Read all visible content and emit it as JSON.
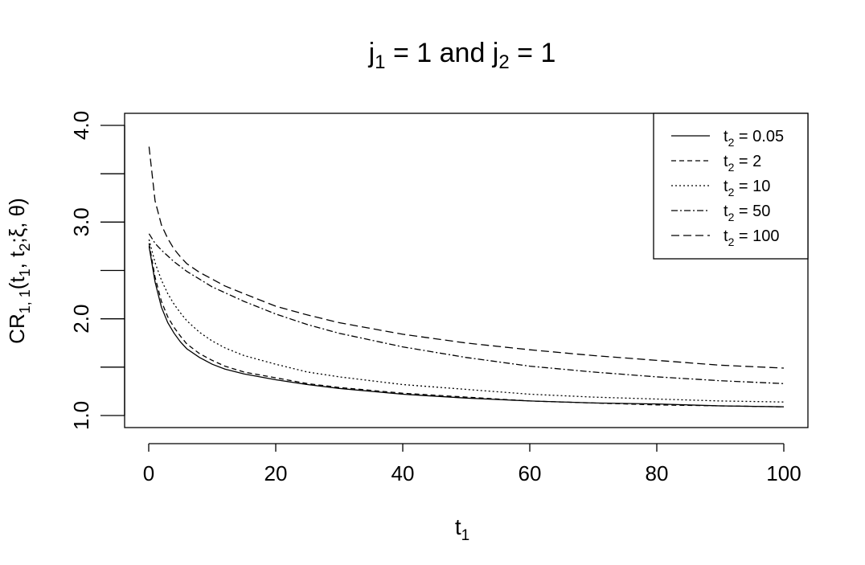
{
  "chart_data": {
    "type": "line",
    "title": {
      "j1_sym": "j",
      "j1_sub": "1",
      "mid": " = 1 and ",
      "j2_sym": "j",
      "j2_sub": "2",
      "end": " = 1"
    },
    "xlabel": {
      "sym": "t",
      "sub": "1"
    },
    "ylabel": {
      "p1": "CR",
      "s1": "1, 1",
      "p2": "(t",
      "s2": "1",
      "p3": ", t",
      "s3": "2",
      "p4": ";ξ, θ)"
    },
    "xlim": [
      0,
      100
    ],
    "ylim": [
      1.0,
      4.0
    ],
    "x_ticks": [
      0,
      20,
      40,
      60,
      80,
      100
    ],
    "x_tick_labels": [
      "0",
      "20",
      "40",
      "60",
      "80",
      "100"
    ],
    "y_ticks": [
      1.0,
      1.5,
      2.0,
      2.5,
      3.0,
      3.5,
      4.0
    ],
    "y_tick_labels": [
      "1.0",
      "",
      "2.0",
      "",
      "3.0",
      "",
      "4.0"
    ],
    "grid": false,
    "legend_position": "top-right",
    "x": [
      0.05,
      1,
      2,
      3,
      4,
      5,
      6,
      8,
      10,
      12,
      15,
      20,
      25,
      30,
      40,
      50,
      60,
      70,
      80,
      90,
      100
    ],
    "series": [
      {
        "label_sym": "t",
        "label_sub": "2",
        "label_val": " = 0.05",
        "dash": "",
        "values": [
          2.75,
          2.38,
          2.12,
          1.96,
          1.85,
          1.76,
          1.69,
          1.6,
          1.53,
          1.48,
          1.43,
          1.37,
          1.32,
          1.28,
          1.22,
          1.18,
          1.15,
          1.13,
          1.12,
          1.1,
          1.09
        ]
      },
      {
        "label_sym": "t",
        "label_sub": "2",
        "label_val": " = 2",
        "dash": "6,4",
        "values": [
          2.78,
          2.43,
          2.18,
          2.02,
          1.91,
          1.82,
          1.74,
          1.64,
          1.57,
          1.51,
          1.45,
          1.39,
          1.33,
          1.29,
          1.23,
          1.19,
          1.15,
          1.13,
          1.11,
          1.1,
          1.09
        ]
      },
      {
        "label_sym": "t",
        "label_sub": "2",
        "label_val": " = 10",
        "dash": "2,3",
        "values": [
          2.82,
          2.58,
          2.4,
          2.26,
          2.15,
          2.06,
          1.98,
          1.86,
          1.77,
          1.7,
          1.62,
          1.53,
          1.45,
          1.4,
          1.32,
          1.27,
          1.22,
          1.19,
          1.17,
          1.15,
          1.14
        ]
      },
      {
        "label_sym": "t",
        "label_sub": "2",
        "label_val": " = 50",
        "dash": "8,3,2,3",
        "values": [
          2.88,
          2.78,
          2.71,
          2.65,
          2.59,
          2.54,
          2.49,
          2.41,
          2.33,
          2.27,
          2.18,
          2.05,
          1.94,
          1.85,
          1.71,
          1.6,
          1.51,
          1.45,
          1.4,
          1.36,
          1.33
        ]
      },
      {
        "label_sym": "t",
        "label_sub": "2",
        "label_val": " = 100",
        "dash": "10,5",
        "values": [
          3.78,
          3.22,
          2.97,
          2.83,
          2.72,
          2.64,
          2.57,
          2.48,
          2.41,
          2.34,
          2.26,
          2.13,
          2.04,
          1.96,
          1.84,
          1.75,
          1.68,
          1.62,
          1.57,
          1.52,
          1.49
        ]
      }
    ]
  }
}
